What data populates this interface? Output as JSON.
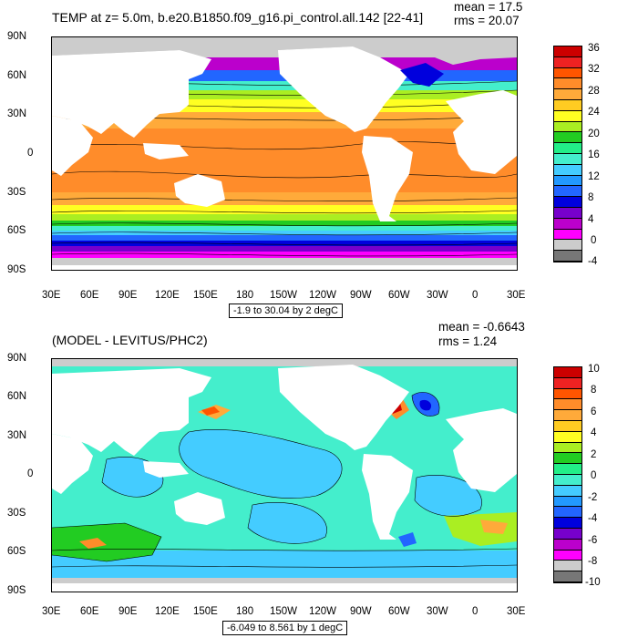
{
  "panels": [
    {
      "title": "TEMP at z=   5.0m, b.e20.B1850.f09_g16.pi_control.all.142 [22-41]",
      "mean": "mean = 17.5",
      "rms": "rms = 20.07",
      "range_label": "-1.9 to 30.04 by 2 degC",
      "lat_labels": [
        "90N",
        "60N",
        "30N",
        "0",
        "30S",
        "60S",
        "90S"
      ],
      "lon_labels": [
        "30E",
        "60E",
        "90E",
        "120E",
        "150E",
        "180",
        "150W",
        "120W",
        "90W",
        "60W",
        "30W",
        "0",
        "30E"
      ],
      "colorbar_labels": [
        "36",
        "32",
        "28",
        "24",
        "20",
        "16",
        "12",
        "8",
        "4",
        "0",
        "-4"
      ],
      "colorbar_colors": [
        "#cc0000",
        "#ee2222",
        "#ff5500",
        "#ff8c2a",
        "#ffaa3a",
        "#ffcc22",
        "#ffff22",
        "#aaee22",
        "#22cc22",
        "#22ee88",
        "#44eecc",
        "#44ccff",
        "#2299ff",
        "#2266ff",
        "#0000dd",
        "#7700cc",
        "#bb00cc",
        "#ff00ff",
        "#cccccc",
        "#777777"
      ]
    },
    {
      "title": "(MODEL - LEVITUS/PHC2)",
      "mean": "mean = -0.6643",
      "rms": "rms = 1.24",
      "range_label": "-6.049 to 8.561 by 1 degC",
      "lat_labels": [
        "90N",
        "60N",
        "30N",
        "0",
        "30S",
        "60S",
        "90S"
      ],
      "lon_labels": [
        "30E",
        "60E",
        "90E",
        "120E",
        "150E",
        "180",
        "150W",
        "120W",
        "90W",
        "60W",
        "30W",
        "0",
        "30E"
      ],
      "colorbar_labels": [
        "10",
        "8",
        "6",
        "4",
        "2",
        "0",
        "-2",
        "-4",
        "-6",
        "-8",
        "-10"
      ],
      "colorbar_colors": [
        "#cc0000",
        "#ee2222",
        "#ff5500",
        "#ff8c2a",
        "#ffaa3a",
        "#ffcc22",
        "#ffff22",
        "#aaee22",
        "#22cc22",
        "#22ee88",
        "#44eecc",
        "#44ccff",
        "#2299ff",
        "#2266ff",
        "#0000dd",
        "#7700cc",
        "#bb00cc",
        "#ff00ff",
        "#cccccc",
        "#777777"
      ]
    }
  ]
}
